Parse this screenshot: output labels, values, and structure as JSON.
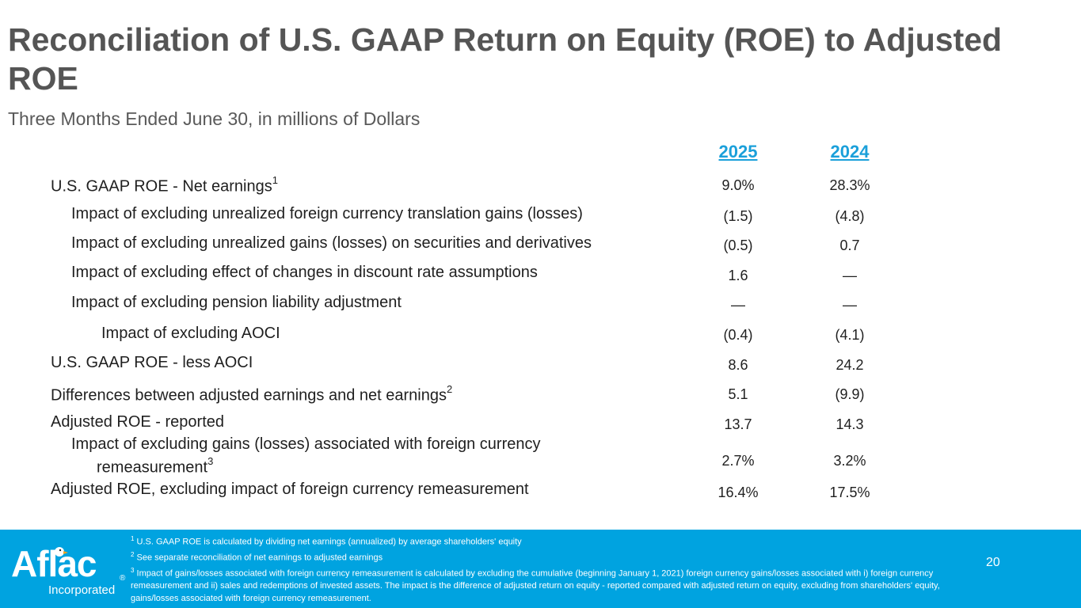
{
  "header": {
    "title": "Reconciliation of U.S. GAAP Return on Equity (ROE) to Adjusted ROE",
    "subtitle": "Three Months Ended June 30, in millions of Dollars"
  },
  "table": {
    "columns": [
      "2025",
      "2024"
    ],
    "rows": [
      {
        "label": "U.S. GAAP ROE - Net earnings",
        "sup": "1",
        "v2025": "9.0%",
        "v2024": "28.3%"
      },
      {
        "label": "Impact of excluding unrealized foreign currency translation gains (losses)",
        "v2025": "(1.5)",
        "v2024": "(4.8)"
      },
      {
        "label": "Impact of excluding unrealized gains (losses) on securities and derivatives",
        "v2025": "(0.5)",
        "v2024": "0.7"
      },
      {
        "label": "Impact of excluding effect of changes in discount rate assumptions",
        "v2025": "1.6",
        "v2024": "—"
      },
      {
        "label": "Impact of excluding pension liability adjustment",
        "v2025": "—",
        "v2024": "—"
      },
      {
        "label": "Impact of excluding AOCI",
        "v2025": "(0.4)",
        "v2024": "(4.1)"
      },
      {
        "label": "U.S. GAAP ROE - less AOCI",
        "v2025": "8.6",
        "v2024": "24.2"
      },
      {
        "label": "Differences between adjusted earnings and net earnings",
        "sup": "2",
        "v2025": "5.1",
        "v2024": "(9.9)"
      },
      {
        "label": "Adjusted ROE - reported",
        "v2025": "13.7",
        "v2024": "14.3"
      },
      {
        "label": "Impact of excluding gains (losses) associated with foreign currency",
        "label_line2": "remeasurement",
        "sup": "3",
        "v2025": "2.7%",
        "v2024": "3.2%"
      },
      {
        "label": "Adjusted ROE, excluding impact of foreign currency remeasurement",
        "v2025": "16.4%",
        "v2024": "17.5%"
      }
    ]
  },
  "footer": {
    "logo_text": "Aflac",
    "logo_reg": "®",
    "logo_sub": "Incorporated",
    "notes": [
      {
        "sup": "1",
        "text": "U.S. GAAP ROE is calculated by dividing net earnings (annualized) by average shareholders' equity"
      },
      {
        "sup": "2",
        "text": "See separate reconciliation of net earnings to adjusted earnings"
      },
      {
        "sup": "3",
        "text": "Impact of gains/losses associated with foreign currency remeasurement is calculated by excluding the cumulative (beginning January 1, 2021) foreign currency gains/losses associated with i) foreign currency remeasurement and ii) sales and redemptions of invested assets. The impact is the difference of adjusted return on equity - reported compared with adjusted return on equity, excluding from shareholders' equity, gains/losses associated with foreign currency remeasurement."
      }
    ],
    "page_number": "20"
  },
  "colors": {
    "title": "#555555",
    "accent": "#1ba0da",
    "footer_bg": "#00a3e0"
  }
}
